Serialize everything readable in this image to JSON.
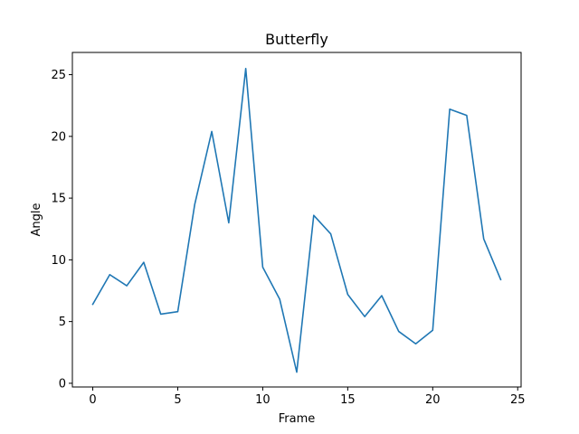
{
  "chart_data": {
    "type": "line",
    "title": "Butterfly",
    "xlabel": "Frame",
    "ylabel": "Angle",
    "xlim": [
      -1.2,
      25.2
    ],
    "ylim": [
      -0.3,
      26.8
    ],
    "xticks": [
      0,
      5,
      10,
      15,
      20,
      25
    ],
    "yticks": [
      0,
      5,
      10,
      15,
      20,
      25
    ],
    "grid": false,
    "legend": "none",
    "series": [
      {
        "name": "Angle",
        "color": "#1f77b4",
        "x": [
          0,
          1,
          2,
          3,
          4,
          5,
          6,
          7,
          8,
          9,
          10,
          11,
          12,
          13,
          14,
          15,
          16,
          17,
          18,
          19,
          20,
          21,
          22,
          23,
          24
        ],
        "values": [
          6.4,
          8.8,
          7.9,
          9.8,
          5.6,
          5.8,
          14.5,
          20.4,
          13.0,
          25.5,
          9.4,
          6.8,
          0.9,
          13.6,
          12.1,
          7.2,
          5.4,
          7.1,
          4.2,
          3.2,
          4.3,
          22.2,
          21.7,
          11.7,
          8.4
        ]
      }
    ]
  }
}
